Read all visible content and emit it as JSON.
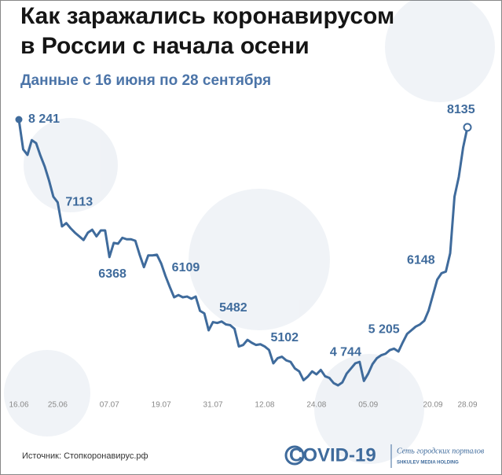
{
  "chart_data": {
    "type": "line",
    "title": [
      "Как заражались коронавирусом",
      "в России с начала осени"
    ],
    "subtitle": "Данные с 16 июня по 28 сентября",
    "source": "Источник: Стопкоронавирус.рф",
    "logo": {
      "name": "COVID-19",
      "network": "Сеть городских порталов",
      "holding": "SHKULEV MEDIA HOLDING"
    },
    "color": "#3f6b9c",
    "categories": [
      "16.06",
      null,
      null,
      null,
      null,
      null,
      null,
      null,
      null,
      "25.06",
      null,
      null,
      null,
      null,
      null,
      null,
      null,
      null,
      null,
      null,
      null,
      "07.07",
      null,
      null,
      null,
      null,
      null,
      null,
      null,
      null,
      null,
      null,
      null,
      "19.07",
      null,
      null,
      null,
      null,
      null,
      null,
      null,
      null,
      null,
      null,
      null,
      "31.07",
      null,
      null,
      null,
      null,
      null,
      null,
      null,
      null,
      null,
      null,
      null,
      "12.08",
      null,
      null,
      null,
      null,
      null,
      null,
      null,
      null,
      null,
      null,
      null,
      "24.08",
      null,
      null,
      null,
      null,
      null,
      null,
      null,
      null,
      null,
      null,
      null,
      "05.09",
      null,
      null,
      null,
      null,
      null,
      null,
      null,
      null,
      null,
      null,
      null,
      null,
      null,
      null,
      "20.09",
      null,
      null,
      null,
      null,
      null,
      null,
      null,
      "28.09"
    ],
    "values": [
      8241,
      7835,
      7760,
      7960,
      7920,
      7750,
      7600,
      7410,
      7190,
      7113,
      6785,
      6830,
      6760,
      6700,
      6650,
      6600,
      6700,
      6740,
      6650,
      6730,
      6730,
      6368,
      6560,
      6550,
      6630,
      6610,
      6610,
      6590,
      6400,
      6230,
      6390,
      6390,
      6400,
      6280,
      6109,
      5960,
      5820,
      5850,
      5820,
      5830,
      5800,
      5830,
      5635,
      5600,
      5370,
      5482,
      5470,
      5490,
      5450,
      5440,
      5390,
      5150,
      5170,
      5240,
      5200,
      5170,
      5180,
      5150,
      5102,
      4920,
      4990,
      5010,
      4960,
      4940,
      4850,
      4810,
      4690,
      4740,
      4810,
      4770,
      4830,
      4744,
      4720,
      4650,
      4620,
      4660,
      4780,
      4850,
      4920,
      4940,
      4680,
      4780,
      4910,
      4990,
      5030,
      5050,
      5100,
      5120,
      5080,
      5205,
      5320,
      5370,
      5420,
      5450,
      5500,
      5640,
      5850,
      6060,
      6148,
      6170,
      6420,
      7190,
      7460,
      7860,
      8135
    ],
    "value_labels": [
      "8 241",
      null,
      null,
      null,
      null,
      null,
      null,
      null,
      null,
      "7113",
      null,
      null,
      null,
      null,
      null,
      null,
      null,
      null,
      null,
      null,
      null,
      "6368",
      null,
      null,
      null,
      null,
      null,
      null,
      null,
      null,
      null,
      null,
      null,
      null,
      "6109",
      null,
      null,
      null,
      null,
      null,
      null,
      null,
      null,
      null,
      null,
      "5482",
      null,
      null,
      null,
      null,
      null,
      null,
      null,
      null,
      null,
      null,
      null,
      null,
      "5102",
      null,
      null,
      null,
      null,
      null,
      null,
      null,
      null,
      null,
      null,
      null,
      null,
      "4 744",
      null,
      null,
      null,
      null,
      null,
      null,
      null,
      null,
      null,
      null,
      null,
      null,
      null,
      null,
      null,
      null,
      null,
      "5 205",
      null,
      null,
      null,
      null,
      null,
      null,
      null,
      null,
      "6148",
      null,
      null,
      null,
      null,
      null,
      "8135"
    ]
  }
}
